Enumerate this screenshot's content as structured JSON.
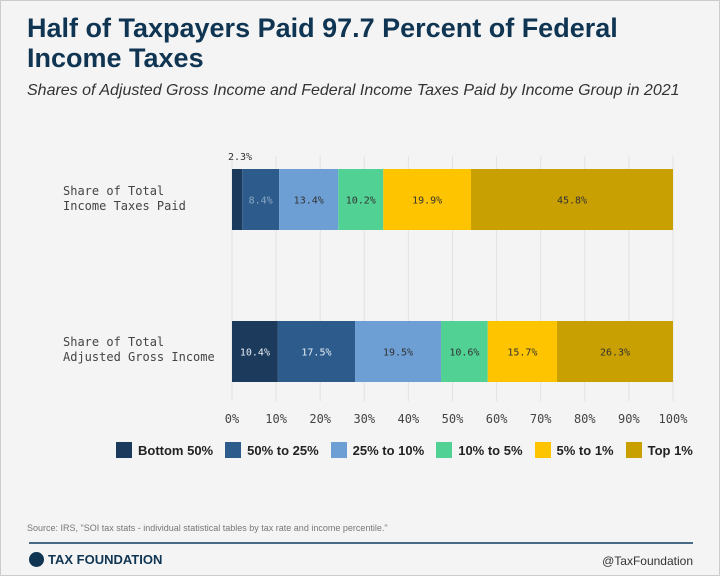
{
  "title": "Half of Taxpayers Paid 97.7 Percent of Federal Income Taxes",
  "subtitle": "Shares of Adjusted Gross Income and Federal Income Taxes Paid by Income Group in 2021",
  "source": "Source: IRS, \"SOI tax stats - individual statistical tables by tax rate and income percentile.\"",
  "footer": {
    "logo_text": "TAX FOUNDATION",
    "handle": "@TaxFoundation"
  },
  "chart_data": {
    "type": "bar",
    "orientation": "horizontal",
    "stacked": true,
    "categories": [
      "Share of Total Income Taxes Paid",
      "Share of Total Adjusted Gross Income"
    ],
    "series": [
      {
        "name": "Bottom 50%",
        "color": "#1b3a5c",
        "values": [
          2.3,
          10.4
        ],
        "labels": [
          "2.3%",
          "10.4%"
        ]
      },
      {
        "name": "50% to 25%",
        "color": "#2d5c8c",
        "values": [
          8.4,
          17.5
        ],
        "labels": [
          "8.4%",
          "17.5%"
        ]
      },
      {
        "name": "25% to 10%",
        "color": "#6d9fd4",
        "values": [
          13.4,
          19.5
        ],
        "labels": [
          "13.4%",
          "19.5%"
        ]
      },
      {
        "name": "10% to 5%",
        "color": "#52d194",
        "values": [
          10.2,
          10.6
        ],
        "labels": [
          "10.2%",
          "10.6%"
        ]
      },
      {
        "name": "5% to 1%",
        "color": "#fec400",
        "values": [
          19.9,
          15.7
        ],
        "labels": [
          "19.9%",
          "15.7%"
        ]
      },
      {
        "name": "Top 1%",
        "color": "#c9a002",
        "values": [
          45.8,
          26.3
        ],
        "labels": [
          "45.8%",
          "26.3%"
        ]
      }
    ],
    "xlim": [
      0,
      100
    ],
    "xticks": [
      "0%",
      "10%",
      "20%",
      "30%",
      "40%",
      "50%",
      "60%",
      "70%",
      "80%",
      "90%",
      "100%"
    ],
    "grid": true,
    "legend": "bottom"
  }
}
